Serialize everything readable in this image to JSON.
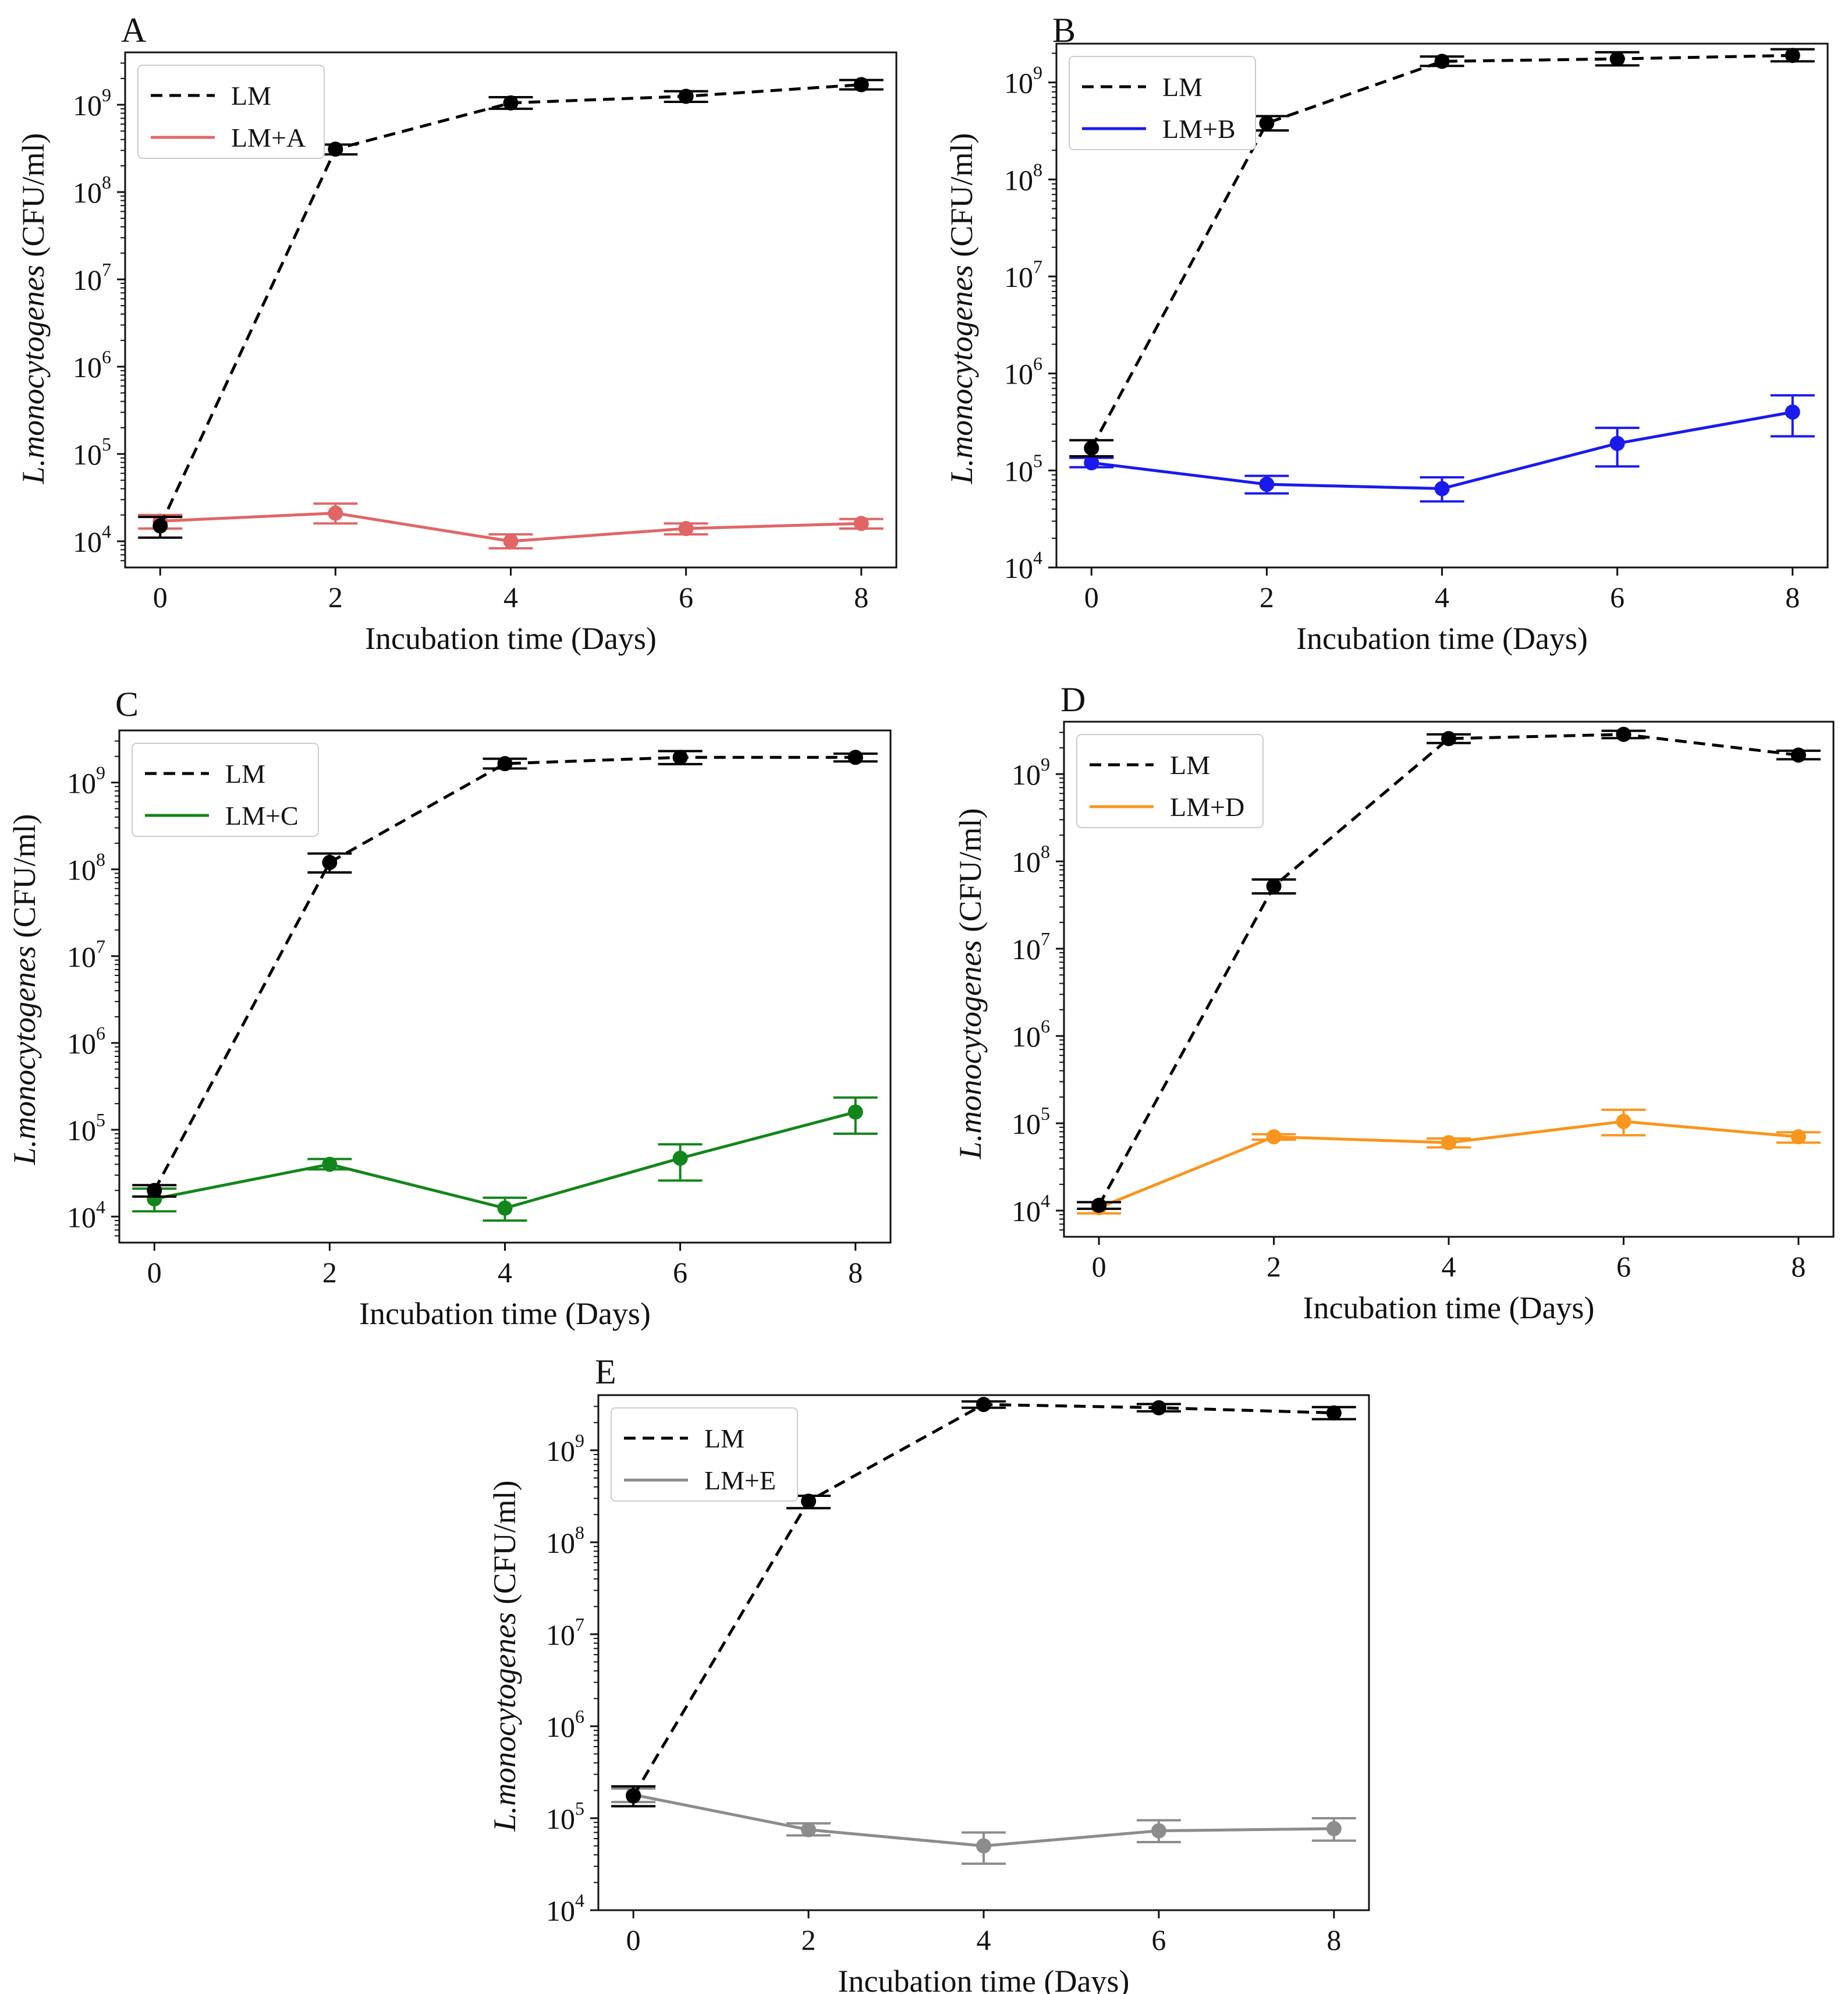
{
  "figure": {
    "panels_ref": "chart_data"
  },
  "chart_data": [
    {
      "type": "line",
      "panel": "A",
      "xlabel": "Incubation time (Days)",
      "ylabel_italic": "L.monocytogenes",
      "ylabel_unit": "(CFU/ml)",
      "yscale": "log",
      "ylim_exp": [
        3.7,
        9.6
      ],
      "ytick_exps": [
        4,
        5,
        6,
        7,
        8,
        9
      ],
      "xlim": [
        -0.4,
        8.4
      ],
      "xticks": [
        0,
        2,
        4,
        6,
        8
      ],
      "legend_position": "top-left",
      "series": [
        {
          "name": "LM",
          "color": "#000000",
          "dash": "dashed",
          "x": [
            0,
            2,
            4,
            6,
            8
          ],
          "y": [
            15000,
            310000000,
            1050000000,
            1250000000,
            1700000000
          ],
          "err_low": [
            11000,
            270000000,
            900000000,
            1080000000,
            1500000000
          ],
          "err_high": [
            19000,
            350000000,
            1220000000,
            1430000000,
            1920000000
          ]
        },
        {
          "name": "LM+A",
          "color": "#e06666",
          "dash": "solid",
          "x": [
            0,
            2,
            4,
            6,
            8
          ],
          "y": [
            17000,
            21000,
            10000,
            14000,
            16000
          ],
          "err_low": [
            14000,
            16000,
            8300,
            12000,
            14000
          ],
          "err_high": [
            20000,
            27000,
            12000,
            16000,
            18000
          ]
        }
      ]
    },
    {
      "type": "line",
      "panel": "B",
      "xlabel": "Incubation time (Days)",
      "ylabel_italic": "L.monocytogenes",
      "ylabel_unit": "(CFU/ml)",
      "yscale": "log",
      "ylim_exp": [
        4,
        9.4
      ],
      "ytick_exps": [
        4,
        5,
        6,
        7,
        8,
        9
      ],
      "xlim": [
        -0.4,
        8.4
      ],
      "xticks": [
        0,
        2,
        4,
        6,
        8
      ],
      "legend_position": "top-left",
      "series": [
        {
          "name": "LM",
          "color": "#000000",
          "dash": "dashed",
          "x": [
            0,
            2,
            4,
            6,
            8
          ],
          "y": [
            170000,
            380000000,
            1650000000,
            1750000000,
            1900000000
          ],
          "err_low": [
            140000,
            320000000,
            1480000000,
            1500000000,
            1650000000
          ],
          "err_high": [
            205000,
            450000000,
            1850000000,
            2050000000,
            2200000000
          ]
        },
        {
          "name": "LM+B",
          "color": "#1a1aee",
          "dash": "solid",
          "x": [
            0,
            2,
            4,
            6,
            8
          ],
          "y": [
            120000,
            72000,
            65000,
            190000,
            400000
          ],
          "err_low": [
            108000,
            58000,
            48000,
            110000,
            225000
          ],
          "err_high": [
            135000,
            88000,
            85000,
            275000,
            595000
          ]
        }
      ]
    },
    {
      "type": "line",
      "panel": "C",
      "xlabel": "Incubation time (Days)",
      "ylabel_italic": "L.monocytogenes",
      "ylabel_unit": "(CFU/ml)",
      "yscale": "log",
      "ylim_exp": [
        3.7,
        9.6
      ],
      "ytick_exps": [
        4,
        5,
        6,
        7,
        8,
        9
      ],
      "xlim": [
        -0.4,
        8.4
      ],
      "xticks": [
        0,
        2,
        4,
        6,
        8
      ],
      "legend_position": "top-left",
      "series": [
        {
          "name": "LM",
          "color": "#000000",
          "dash": "dashed",
          "x": [
            0,
            2,
            4,
            6,
            8
          ],
          "y": [
            20000,
            120000000,
            1650000000,
            1950000000,
            1950000000
          ],
          "err_low": [
            17000,
            92000000,
            1450000000,
            1630000000,
            1750000000
          ],
          "err_high": [
            23000,
            152000000,
            1880000000,
            2300000000,
            2150000000
          ]
        },
        {
          "name": "LM+C",
          "color": "#12861b",
          "dash": "solid",
          "x": [
            0,
            2,
            4,
            6,
            8
          ],
          "y": [
            16000,
            40000,
            12500,
            47000,
            160000
          ],
          "err_low": [
            11500,
            35000,
            9000,
            26000,
            90000
          ],
          "err_high": [
            21000,
            46000,
            16500,
            68000,
            235000
          ]
        }
      ]
    },
    {
      "type": "line",
      "panel": "D",
      "xlabel": "Incubation time (Days)",
      "ylabel_italic": "L.monocytogenes",
      "ylabel_unit": "(CFU/ml)",
      "yscale": "log",
      "ylim_exp": [
        3.7,
        9.6
      ],
      "ytick_exps": [
        4,
        5,
        6,
        7,
        8,
        9
      ],
      "xlim": [
        -0.4,
        8.4
      ],
      "xticks": [
        0,
        2,
        4,
        6,
        8
      ],
      "legend_position": "top-left",
      "series": [
        {
          "name": "LM",
          "color": "#000000",
          "dash": "dashed",
          "x": [
            0,
            2,
            4,
            6,
            8
          ],
          "y": [
            11500,
            52000000,
            2550000000,
            2850000000,
            1650000000
          ],
          "err_low": [
            10500,
            43000000,
            2270000000,
            2580000000,
            1480000000
          ],
          "err_high": [
            12500,
            62000000,
            2850000000,
            3130000000,
            1850000000
          ]
        },
        {
          "name": "LM+D",
          "color": "#f8961e",
          "dash": "solid",
          "x": [
            0,
            2,
            4,
            6,
            8
          ],
          "y": [
            10800,
            70000,
            60000,
            105000,
            70000
          ],
          "err_low": [
            9300,
            65000,
            53000,
            73000,
            60000
          ],
          "err_high": [
            12500,
            75000,
            67000,
            143000,
            79000
          ]
        }
      ]
    },
    {
      "type": "line",
      "panel": "E",
      "xlabel": "Incubation time (Days)",
      "ylabel_italic": "L.monocytogenes",
      "ylabel_unit": "(CFU/ml)",
      "yscale": "log",
      "ylim_exp": [
        4,
        9.6
      ],
      "ytick_exps": [
        4,
        5,
        6,
        7,
        8,
        9
      ],
      "xlim": [
        -0.4,
        8.4
      ],
      "xticks": [
        0,
        2,
        4,
        6,
        8
      ],
      "legend_position": "top-left",
      "series": [
        {
          "name": "LM",
          "color": "#000000",
          "dash": "dashed",
          "x": [
            0,
            2,
            4,
            6,
            8
          ],
          "y": [
            175000,
            280000000,
            3150000000,
            2900000000,
            2550000000
          ],
          "err_low": [
            135000,
            235000000,
            2900000000,
            2650000000,
            2180000000
          ],
          "err_high": [
            222000,
            320000000,
            3400000000,
            3180000000,
            2950000000
          ]
        },
        {
          "name": "LM+E",
          "color": "#8c8c8c",
          "dash": "solid",
          "x": [
            0,
            2,
            4,
            6,
            8
          ],
          "y": [
            180000,
            75000,
            50000,
            73000,
            77000
          ],
          "err_low": [
            150000,
            65000,
            32000,
            55000,
            57000
          ],
          "err_high": [
            210000,
            88000,
            70000,
            95000,
            100000
          ]
        }
      ]
    }
  ]
}
